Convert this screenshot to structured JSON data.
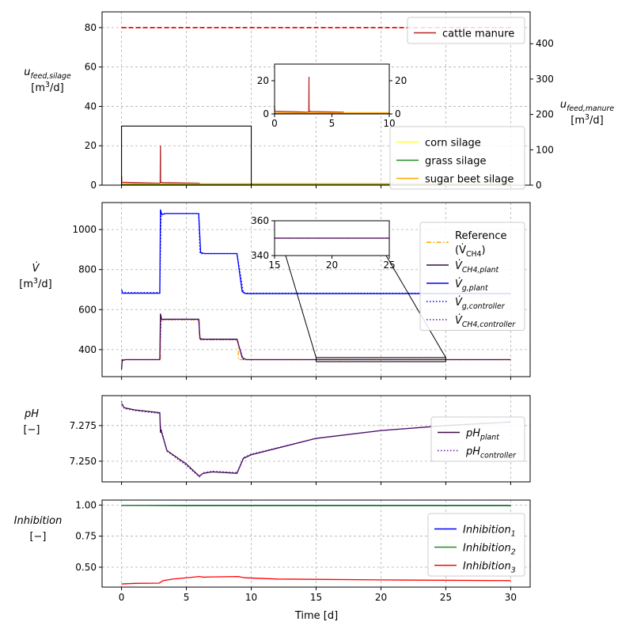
{
  "figure": {
    "xlabel": "Time [d]",
    "xticks": [
      0,
      5,
      10,
      15,
      20,
      25,
      30
    ],
    "xlim": [
      -1.5,
      31.5
    ]
  },
  "chart_data": [
    {
      "type": "line",
      "id": "feed",
      "ylabel_lines": [
        "u_{feed,silage}",
        "[m^3/d]"
      ],
      "ylabel_right_lines": [
        "u_{feed,manure}",
        "[m^3/d]"
      ],
      "ylim": [
        0,
        88
      ],
      "yticks": [
        0,
        20,
        40,
        60,
        80
      ],
      "ylim_right": [
        0,
        490
      ],
      "yticks_right": [
        0,
        100,
        200,
        300,
        400
      ],
      "grid": true,
      "legends": [
        {
          "position": "top-right",
          "entries": [
            {
              "label": "cattle manure",
              "color": "#b22222",
              "style": "solid"
            }
          ]
        },
        {
          "position": "bottom-right",
          "entries": [
            {
              "label": "corn silage",
              "color": "#ffff33",
              "style": "solid"
            },
            {
              "label": "grass silage",
              "color": "#228b22",
              "style": "solid"
            },
            {
              "label": "sugar beet silage",
              "color": "#ffa500",
              "style": "solid"
            }
          ]
        }
      ],
      "series": [
        {
          "name": "cattle manure",
          "axis": "right",
          "color": "#b22222",
          "x": [
            0,
            0.02,
            2.98,
            3.0,
            3.01,
            3.06,
            3.2,
            6.0,
            6.02,
            9.0,
            9.02,
            10,
            30
          ],
          "y": [
            25,
            8,
            5.5,
            112,
            10,
            8,
            7.2,
            5.5,
            2.2,
            2.0,
            3,
            3.2,
            4
          ]
        },
        {
          "name": "corn silage",
          "axis": "left",
          "color": "#ffff33",
          "x": [
            0,
            30
          ],
          "y": [
            0.5,
            0.5
          ]
        },
        {
          "name": "grass silage",
          "axis": "left",
          "color": "#228b22",
          "x": [
            0,
            30
          ],
          "y": [
            0.3,
            0.3
          ]
        },
        {
          "name": "sugar beet silage",
          "axis": "left",
          "color": "#ffa500",
          "x": [
            0,
            30
          ],
          "y": [
            0.7,
            0.7
          ]
        },
        {
          "name": "",
          "axis": "left",
          "color": "#ff0000",
          "style": "dashed",
          "x": [
            0,
            30
          ],
          "y": [
            80,
            80
          ]
        }
      ],
      "zoom_box": {
        "x": [
          0,
          10
        ],
        "y": [
          0,
          30
        ]
      },
      "inset": {
        "xlim": [
          0,
          10
        ],
        "ylim": [
          0,
          30
        ],
        "xticks": [
          0,
          5,
          10
        ],
        "yticks": [
          0,
          20
        ],
        "yticks_right": [
          0,
          20
        ]
      }
    },
    {
      "type": "line",
      "id": "flow",
      "ylabel_lines": [
        "V̇",
        "[m^3/d]"
      ],
      "ylim": [
        265,
        1135
      ],
      "yticks": [
        400,
        600,
        800,
        1000
      ],
      "grid": true,
      "legend": {
        "position": "right",
        "entries": [
          {
            "label": "Reference",
            "label2": "(V̇_{CH4})",
            "color": "#ffa500",
            "style": "dashdot"
          },
          {
            "label": "V̇_{CH4,plant}",
            "color": "#3b0a45",
            "style": "solid"
          },
          {
            "label": "V̇_{g,plant}",
            "color": "#0000ff",
            "style": "solid"
          },
          {
            "label": "V̇_{g,controller}",
            "color": "#0000ff",
            "style": "dotted"
          },
          {
            "label": "V̇_{CH4,controller}",
            "color": "#6a0dad",
            "style": "dotted"
          }
        ]
      },
      "series": [
        {
          "name": "Reference (V̇_{CH4})",
          "color": "#ffa500",
          "style": "dashdot",
          "x": [
            0,
            3,
            3,
            6,
            6,
            9,
            9,
            30
          ],
          "y": [
            350,
            350,
            550,
            550,
            450,
            450,
            350,
            350
          ]
        },
        {
          "name": "V̇_{CH4,plant}",
          "color": "#3b0a45",
          "style": "solid",
          "x": [
            0,
            0.05,
            0.3,
            2.95,
            3.0,
            3.1,
            3.3,
            5.95,
            6.05,
            6.3,
            8.9,
            9.3,
            9.6,
            30
          ],
          "y": [
            300,
            345,
            350,
            350,
            580,
            550,
            552,
            552,
            455,
            452,
            452,
            360,
            350,
            350
          ]
        },
        {
          "name": "V̇_{g,plant}",
          "color": "#0000ff",
          "style": "solid",
          "x": [
            0,
            0.1,
            2.95,
            3.0,
            3.1,
            3.4,
            5.95,
            6.1,
            6.4,
            8.9,
            9.3,
            9.6,
            30
          ],
          "y": [
            700,
            682,
            682,
            1100,
            1075,
            1080,
            1080,
            885,
            880,
            880,
            690,
            680,
            680
          ]
        },
        {
          "name": "V̇_{g,controller}",
          "color": "#0000ff",
          "style": "dotted",
          "x": [
            0,
            2.95,
            3.05,
            5.95,
            6.05,
            8.9,
            9.4,
            30
          ],
          "y": [
            685,
            685,
            1080,
            1080,
            880,
            880,
            682,
            682
          ]
        },
        {
          "name": "V̇_{CH4,controller}",
          "color": "#6a0dad",
          "style": "dotted",
          "x": [
            0,
            2.95,
            3.05,
            5.95,
            6.05,
            8.9,
            9.4,
            30
          ],
          "y": [
            350,
            350,
            550,
            550,
            450,
            450,
            350,
            350
          ]
        }
      ],
      "zoom_box": {
        "x": [
          15,
          25
        ],
        "y": [
          340,
          360
        ]
      },
      "inset": {
        "xlim": [
          15,
          25
        ],
        "ylim": [
          340,
          360
        ],
        "xticks": [
          15,
          20,
          25
        ],
        "yticks": [
          340,
          360
        ]
      }
    },
    {
      "type": "line",
      "id": "ph",
      "ylabel_lines": [
        "pH",
        "[−]"
      ],
      "ylim": [
        7.2355,
        7.296
      ],
      "yticks": [
        7.25,
        7.275
      ],
      "ytick_labels": [
        "7.250",
        "7.275"
      ],
      "grid": true,
      "legend": {
        "position": "right",
        "entries": [
          {
            "label": "pH_{plant}",
            "color": "#3b0a45",
            "style": "solid"
          },
          {
            "label": "pH_{controller}",
            "color": "#6a0dad",
            "style": "dotted"
          }
        ]
      },
      "series": [
        {
          "name": "pH_{plant}",
          "color": "#3b0a45",
          "style": "solid",
          "x": [
            0,
            0.2,
            1,
            2.95,
            3.0,
            3.05,
            3.5,
            5,
            6.0,
            6.3,
            7,
            8.9,
            9.4,
            10,
            15,
            20,
            25,
            30
          ],
          "y": [
            7.2905,
            7.2875,
            7.286,
            7.284,
            7.27,
            7.2715,
            7.2575,
            7.248,
            7.2395,
            7.2415,
            7.2425,
            7.2415,
            7.252,
            7.2545,
            7.266,
            7.2715,
            7.275,
            7.2775
          ]
        },
        {
          "name": "pH_{controller}",
          "color": "#6a0dad",
          "style": "dotted",
          "x": [
            0,
            0.2,
            1,
            2.95,
            3.0,
            3.5,
            5,
            6.0,
            6.3,
            7,
            8.9,
            9.4,
            10,
            15,
            20,
            25,
            30
          ],
          "y": [
            7.292,
            7.287,
            7.2855,
            7.2835,
            7.2745,
            7.257,
            7.247,
            7.239,
            7.242,
            7.243,
            7.242,
            7.2525,
            7.255,
            7.266,
            7.2715,
            7.275,
            7.2775
          ]
        }
      ]
    },
    {
      "type": "line",
      "id": "inhibition",
      "ylabel_lines": [
        "Inhibition",
        "[−]"
      ],
      "ylim": [
        0.34,
        1.04
      ],
      "yticks": [
        0.5,
        0.75,
        1.0
      ],
      "ytick_labels": [
        "0.50",
        "0.75",
        "1.00"
      ],
      "grid": true,
      "legend": {
        "position": "right",
        "entries": [
          {
            "label": "Inhibition_1",
            "color": "#0000ff",
            "style": "solid"
          },
          {
            "label": "Inhibition_2",
            "color": "#228b22",
            "style": "solid"
          },
          {
            "label": "Inhibition_3",
            "color": "#ff0000",
            "style": "solid"
          }
        ]
      },
      "series": [
        {
          "name": "Inhibition_1",
          "color": "#0000ff",
          "style": "solid",
          "x": [
            0,
            30
          ],
          "y": [
            0.998,
            0.998
          ]
        },
        {
          "name": "Inhibition_2",
          "color": "#228b22",
          "style": "solid",
          "x": [
            0,
            5,
            10,
            30
          ],
          "y": [
            0.997,
            0.995,
            0.995,
            0.995
          ]
        },
        {
          "name": "Inhibition_3",
          "color": "#ff0000",
          "style": "solid",
          "x": [
            0,
            1,
            2.9,
            3.2,
            4,
            5,
            6.0,
            6.3,
            7,
            9.0,
            9.5,
            12,
            20,
            30
          ],
          "y": [
            0.365,
            0.37,
            0.372,
            0.392,
            0.405,
            0.415,
            0.425,
            0.42,
            0.422,
            0.425,
            0.415,
            0.405,
            0.398,
            0.392
          ]
        }
      ]
    }
  ]
}
